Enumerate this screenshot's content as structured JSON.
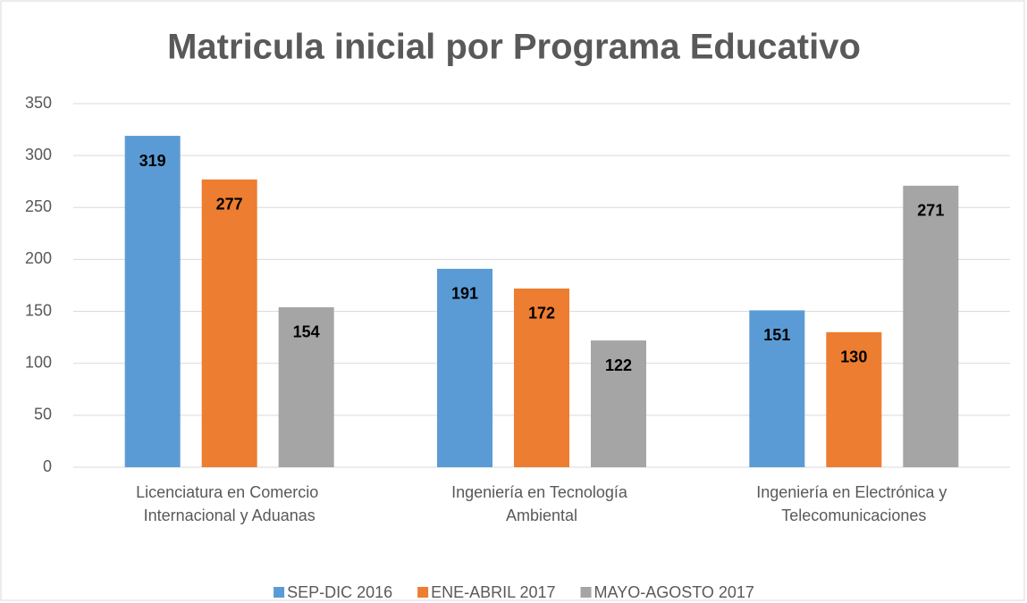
{
  "chart_data": {
    "type": "bar",
    "title": "Matricula inicial por Programa Educativo",
    "categories": [
      "Licenciatura en Comercio Internacional y Aduanas",
      "Ingeniería en Tecnología Ambiental",
      "Ingeniería en Electrónica y Telecomunicaciones"
    ],
    "series": [
      {
        "name": "SEP-DIC 2016",
        "color": "#5b9bd5",
        "values": [
          319,
          191,
          151
        ]
      },
      {
        "name": "ENE-ABRIL 2017",
        "color": "#ed7d31",
        "values": [
          277,
          172,
          130
        ]
      },
      {
        "name": "MAYO-AGOSTO 2017",
        "color": "#a5a5a5",
        "values": [
          154,
          122,
          271
        ]
      }
    ],
    "ylim": [
      0,
      350
    ],
    "yticks": [
      0,
      50,
      100,
      150,
      200,
      250,
      300,
      350
    ],
    "grid": true,
    "legend": "bottom"
  }
}
